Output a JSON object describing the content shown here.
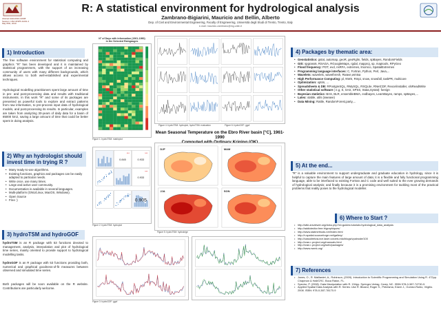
{
  "header": {
    "title": "R: A statistical environment for hydrological analysis",
    "authors": "Zambrano-Bigiarini, Mauricio and Bellin, Alberto",
    "affiliation": "Dep. of Civil and Environmental Engineering, Faculty of Engineering, Università degli Studi di Trento, Trento, Italy",
    "email": "e-mail: mauricio.zambrano@ing.unitn.it",
    "conference_note": [
      "Abstract EGU2010-13008",
      "Session: HS4.3/NP5.4/HS1.4",
      "May 05th, 2010"
    ]
  },
  "sections": {
    "intro": {
      "title": "1) Introduction",
      "paragraphs": [
        "The free software environment for statistical computing and graphics \"R\" has been developed and it is maintained by statistical programmers, with the support of an increasing community of users with many different backgrounds, which allows access to both well-established and experimental techniques.",
        "Hydrological modelling practitioners spent large amount of time in pre- and post-processing data and results with traditional instruments. In this work \"R\" and some of its packages are presented as powerful tools to explore and extract patterns from raw information, to pre-process input data of hydrological models, and post-processing its results. In particular, examples are taken from analyzing 30-years of daily data for a basin of 85000 km2, saving a large amount of time that could be better spent in doing analysis."
      ]
    },
    "why": {
      "title": "2) Why an hydrologist should invest time in trying R ?",
      "items": [
        "Many ready-to-use algorithms.",
        "Existing functions, graphics and packages can be easily adapted to particular needs.",
        "Write once, use many times.",
        "Large and active user community.",
        "Documentation is available in several languages.",
        "Multi-platform (GNU/Linux, MacOS, Windows).",
        "Open Source",
        "Free :)"
      ]
    },
    "hydro": {
      "title": "3) hydroTSM and hydroGOF",
      "p1_bold": "hydroTSM",
      "p1_rest": " is an R package with 53 functions devoted to management, analysis, interpolation and plot of hydrological time series, mainly oriented to provide support to hydrological modelling tasks.",
      "p2_bold": "hydroGOF",
      "p2_rest": " is an R package with 53 functions providing both, numerical and graphical goodness-of-fit measures between observed and simulated time series.",
      "p3": "Both packages will be soon available on the R website. Contributions are particularly welcome."
    },
    "packages": {
      "title": "4) Packages by thematic area:",
      "items": [
        {
          "bold": "Geostatistics:",
          "text": " gstat, automap, geoR, geoRglm, fields, spBayes, RandomFields"
        },
        {
          "bold": "GIS:",
          "text": " spgrass6, RSAGA, RGoogleMaps, rgdal, mapproj, sp, maptools, RPyGeo"
        },
        {
          "bold": "Flood frequency:",
          "text": " POT, evd, nsRFA, extremes, lmomco, SpatialExtremes"
        },
        {
          "bold": "Programming language interfaces:",
          "text": " C, Fortran, Python, Perl, Java,..."
        },
        {
          "bold": "Wavelets:",
          "text": " wavelets, wavethresh, Rwave,wmtsa"
        },
        {
          "bold": "High Performance Computing:",
          "text": " pl, NWS, Rmpi, snow, snowfall, taskPR, multicore"
        },
        {
          "bold": "Optimization:",
          "text": " optim, ..."
        },
        {
          "bold": "Spreadsheets & DB:",
          "text": " RPostgreSQL, RMySQL, RSQLite, RNetCDF, Rexcelinstaller, xlsReadWrite"
        },
        {
          "bold": "Other statistical software",
          "text": " ( e.g, S, SAS, SPSS, Stata,Systat): foreign"
        },
        {
          "bold": "Bayesian statistics:",
          "text": " BAS, BLR, ensembleBMA, evdbayes, LearnBayes, ramps, spBayes,..."
        },
        {
          "bold": "Latex:",
          "text": " xtable, utils (sweave)"
        },
        {
          "bold": "Data Mining:",
          "text": " Rattle, RandomForest,party,..."
        }
      ]
    },
    "end": {
      "title": "5) At the end...",
      "paragraph": "\"R\" is a valuable environment to support undergraduate and graduate education in hydrology, since it is helpful to capture the main features of large amount of data; it is a flexible and fully functional programming language, able to be interfaced to existing Fortran and C code and well suited to the ever growing demands of hydrological analysis; and finally because it is a promising environment for tackling most of the practical problems that reality poses to the hydrological modeller."
    },
    "where": {
      "title": "6) Where to Start ?",
      "items": [
        "http://wiki.arsviewer.org/doku.php?id=guides:tutorials:hydrological_data_analysis",
        "http://addictedtor.free.fr/graphiques/",
        "http://www.statmethods.net/index.html",
        "http://r-spatial.sourceforge.net/gallery/",
        "http://cassdiretosurce.laser.coloels.edu/blogs/vpalnode/100",
        "http://cran.r-project.org/manuals.html",
        "http://cran.r-project.org/web/packages/",
        "http://www.rseek.org/"
      ]
    },
    "references": {
      "title": "7) References",
      "items": [
        "Jones, O., R. Maillardet, A., Robinson, (2009). Introduction to Scientific Programming and Simulation Using R. 472pp. Chapman & Hall/CRC. Boca Raton, FL.",
        "Spector, P. (2008). Data Manipulation with R. 154pp. Springer-Verlag. Carey, NC. ISBN 978-0-387-74730-9.",
        "Applied Spatial Data Analysis with R. Series: Use R. Bivand, Roger S., Pebesma, Edzer J., Gomez-Rubio, Virgilio. 2008. ISBN: 978-0-387-78170-9"
      ]
    }
  },
  "figures": {
    "heatmap_title": [
      "N° of Days with Information (1961-1990)",
      "in the Selected Raingauges"
    ],
    "fig1_caption": "Figure 1: hydroTSM: matrixplot",
    "fig2_caption": "Figure 2: hydroTSM: hydroplot",
    "fig3_caption": "Figure 3: hydroGOF: ggof",
    "fig4_caption": "Figure 4: hydroTSM: hydroplot, hydroTSM: evaluation",
    "fig5_caption": "Figure 5: hydroTSM: hydrokrige",
    "fig6_caption": "Figure 6: hydroGOF: ggof",
    "map_title": [
      "Mean Seasonal Temperature on the Ebro River basin [°C], 1961-1990",
      "Computed with Ordinary Kriging (OK)"
    ],
    "map_season_labels": [
      "DJF",
      "MAM",
      "JJA",
      "SON"
    ],
    "corr_values": [
      "0.845",
      "0.933",
      "0.933",
      "0.933",
      "0.956",
      "0.905"
    ]
  },
  "colors": {
    "title_bar": "#d8e6f4",
    "title_text": "#0b2d6b",
    "accent_rule": "#8a1d1d"
  }
}
